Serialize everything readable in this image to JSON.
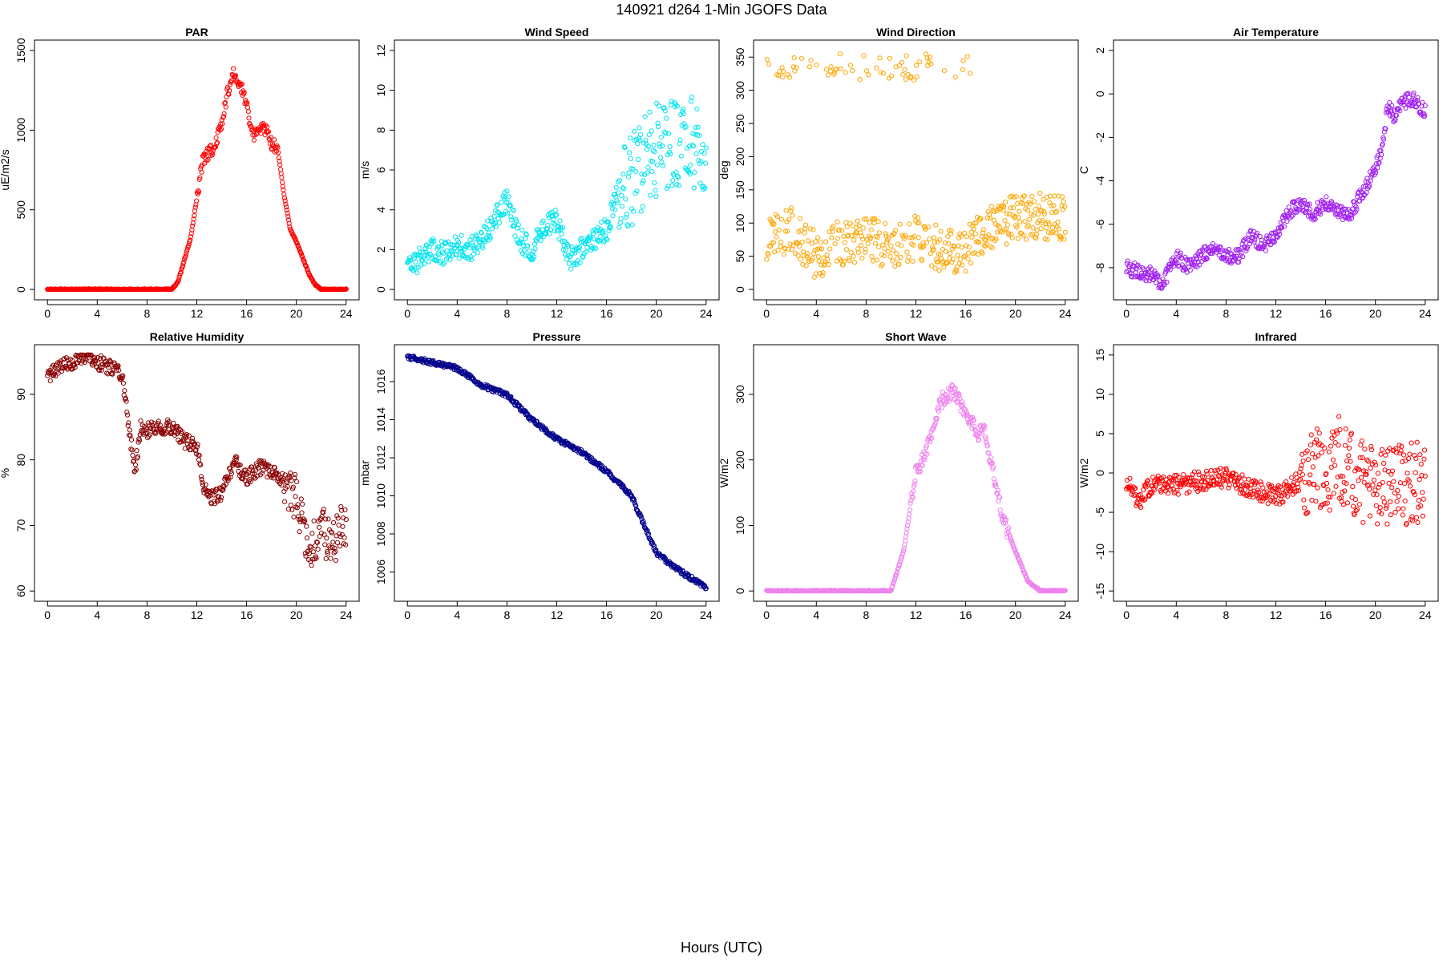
{
  "figure": {
    "title": "140921    d264    1-Min  JGOFS Data",
    "xlabel": "Hours (UTC)"
  },
  "chart_data": [
    {
      "type": "scatter",
      "title": "PAR",
      "ylabel": "uE/m2/s",
      "color": "#ff0000",
      "xlim": [
        0,
        24
      ],
      "ylim": [
        0,
        1500
      ],
      "xticks": [
        0,
        4,
        8,
        12,
        16,
        20,
        24
      ],
      "yticks": [
        0,
        500,
        1000,
        1500
      ],
      "anchors_x": [
        0,
        10,
        10.5,
        11.5,
        12.5,
        13.5,
        14,
        14.5,
        15,
        15.5,
        16,
        16.5,
        17,
        17.5,
        18,
        18.5,
        19,
        19.5,
        20,
        20.5,
        21,
        21.5,
        22,
        24
      ],
      "anchors_y": [
        0,
        0,
        50,
        320,
        820,
        900,
        1050,
        1250,
        1360,
        1290,
        1150,
        960,
        1000,
        1010,
        920,
        880,
        600,
        380,
        300,
        200,
        100,
        30,
        0,
        0
      ],
      "noise": 40,
      "noise_from": 12,
      "noise_to": 18.5,
      "seed": 1
    },
    {
      "type": "scatter",
      "title": "Wind Speed",
      "ylabel": "m/s",
      "color": "#00e5ee",
      "xlim": [
        0,
        24
      ],
      "ylim": [
        0,
        12
      ],
      "xticks": [
        0,
        4,
        8,
        12,
        16,
        20,
        24
      ],
      "yticks": [
        0,
        2,
        4,
        6,
        8,
        10,
        12
      ],
      "anchors_x": [
        0,
        1,
        2,
        3,
        4,
        5,
        6,
        7,
        8,
        9,
        10,
        11,
        12,
        13,
        14,
        15,
        16,
        17,
        18,
        19,
        20,
        21,
        22,
        23,
        24
      ],
      "anchors_y": [
        1,
        1.5,
        2,
        1.8,
        2.2,
        2,
        2.5,
        3.5,
        4.5,
        2.5,
        2,
        3,
        3.5,
        1.5,
        2,
        2.5,
        3,
        5,
        5.5,
        6.5,
        7,
        7.5,
        7,
        7.5,
        7
      ],
      "noise": 0.6,
      "noise_extra": 1.8,
      "noise_extra_from": 17,
      "seed": 2
    },
    {
      "type": "scatter",
      "title": "Wind Direction",
      "ylabel": "deg",
      "color": "#ffa500",
      "xlim": [
        0,
        24
      ],
      "ylim": [
        0,
        360
      ],
      "xticks": [
        0,
        4,
        8,
        12,
        16,
        20,
        24
      ],
      "yticks": [
        0,
        50,
        100,
        150,
        200,
        250,
        300,
        350
      ],
      "anchors_x": [
        0,
        2,
        4,
        6,
        8,
        10,
        12,
        14,
        16,
        18,
        20,
        22,
        24
      ],
      "anchors_y": [
        80,
        90,
        50,
        70,
        80,
        60,
        80,
        60,
        60,
        90,
        110,
        110,
        110
      ],
      "noise": 35,
      "wrap_high": 335,
      "wrap_prob": 0.18,
      "wrap_until": 16.5,
      "seed": 3
    },
    {
      "type": "scatter",
      "title": "Air Temperature",
      "ylabel": "C",
      "color": "#a020f0",
      "xlim": [
        0,
        24
      ],
      "ylim": [
        -9,
        2
      ],
      "xticks": [
        0,
        4,
        8,
        12,
        16,
        20,
        24
      ],
      "yticks": [
        -8,
        -6,
        -4,
        -2,
        0,
        2
      ],
      "anchors_x": [
        0,
        1,
        2,
        2.8,
        4,
        5,
        6,
        7,
        8,
        9,
        10,
        11,
        12,
        13,
        14,
        15,
        16,
        17,
        18,
        19,
        20,
        20.5,
        21,
        21.5,
        22,
        23,
        24
      ],
      "anchors_y": [
        -8,
        -8.2,
        -8.3,
        -8.8,
        -7.5,
        -8,
        -7.5,
        -7,
        -7.5,
        -7.5,
        -6.5,
        -7,
        -6.5,
        -5.5,
        -5,
        -5.5,
        -5,
        -5.5,
        -5.5,
        -4.5,
        -3.5,
        -2.5,
        -0.5,
        -1,
        -0.5,
        -0.2,
        -0.8
      ],
      "noise": 0.35,
      "seed": 4
    },
    {
      "type": "scatter",
      "title": "Relative Humidity",
      "ylabel": "%",
      "color": "#8b0000",
      "xlim": [
        0,
        24
      ],
      "ylim": [
        60,
        96
      ],
      "xticks": [
        0,
        4,
        8,
        12,
        16,
        20,
        24
      ],
      "yticks": [
        60,
        70,
        80,
        90
      ],
      "anchors_x": [
        0,
        1,
        2,
        3,
        4,
        5,
        6,
        6.5,
        7,
        7.5,
        8,
        9,
        10,
        11,
        12,
        12.5,
        13,
        14,
        15,
        16,
        17,
        18,
        19,
        20,
        21,
        22,
        23,
        24
      ],
      "anchors_y": [
        93,
        94,
        95,
        96,
        95,
        94,
        93,
        86,
        78,
        85,
        84.5,
        85,
        85,
        83,
        82,
        76,
        74,
        75,
        80,
        77,
        79,
        78,
        77,
        74,
        66,
        69,
        68,
        70
      ],
      "noise": 1.2,
      "noise_extra": 2.5,
      "noise_extra_from": 19,
      "seed": 5
    },
    {
      "type": "scatter",
      "title": "Pressure",
      "ylabel": "mbar",
      "color": "#00008b",
      "xlim": [
        0,
        24
      ],
      "ylim": [
        1005,
        1017.4
      ],
      "xticks": [
        0,
        4,
        8,
        12,
        16,
        20,
        24
      ],
      "yticks": [
        1006,
        1008,
        1010,
        1012,
        1014,
        1016
      ],
      "anchors_x": [
        0,
        2,
        4,
        6,
        8,
        10,
        12,
        14,
        16,
        18,
        19,
        20,
        22,
        24
      ],
      "anchors_y": [
        1017.3,
        1017,
        1016.7,
        1015.8,
        1015.3,
        1014,
        1013,
        1012.3,
        1011.3,
        1010,
        1008.5,
        1007,
        1006,
        1005.2
      ],
      "noise": 0.12,
      "seed": 6
    },
    {
      "type": "scatter",
      "title": "Short Wave",
      "ylabel": "W/m2",
      "color": "#ee82ee",
      "xlim": [
        0,
        24
      ],
      "ylim": [
        0,
        360
      ],
      "xticks": [
        0,
        4,
        8,
        12,
        16,
        20,
        24
      ],
      "yticks": [
        0,
        100,
        200,
        300
      ],
      "anchors_x": [
        0,
        10,
        11,
        12,
        13,
        14,
        15,
        16,
        17,
        17.5,
        18,
        18.5,
        19,
        20,
        21,
        22,
        24
      ],
      "anchors_y": [
        0,
        0,
        60,
        180,
        220,
        290,
        305,
        270,
        240,
        250,
        200,
        150,
        110,
        60,
        15,
        0,
        0
      ],
      "noise": 12,
      "noise_from": 11.5,
      "noise_to": 19.5,
      "seed": 7
    },
    {
      "type": "scatter",
      "title": "Infrared",
      "ylabel": "W/m2",
      "color": "#ff0000",
      "xlim": [
        0,
        24
      ],
      "ylim": [
        -15,
        15
      ],
      "xticks": [
        0,
        4,
        8,
        12,
        16,
        20,
        24
      ],
      "yticks": [
        -15,
        -10,
        -5,
        0,
        5,
        10,
        15
      ],
      "anchors_x": [
        0,
        1,
        2,
        4,
        6,
        8,
        10,
        12,
        14,
        15,
        16,
        17,
        18,
        20,
        22,
        24
      ],
      "anchors_y": [
        -1,
        -3.5,
        -1.5,
        -1.5,
        -1,
        -0.5,
        -2,
        -3,
        -1,
        1,
        -1,
        2,
        0,
        -2,
        -1.5,
        -1
      ],
      "noise": 1.3,
      "noise_extra": 4,
      "noise_extra_from": 14,
      "seed": 8
    }
  ]
}
